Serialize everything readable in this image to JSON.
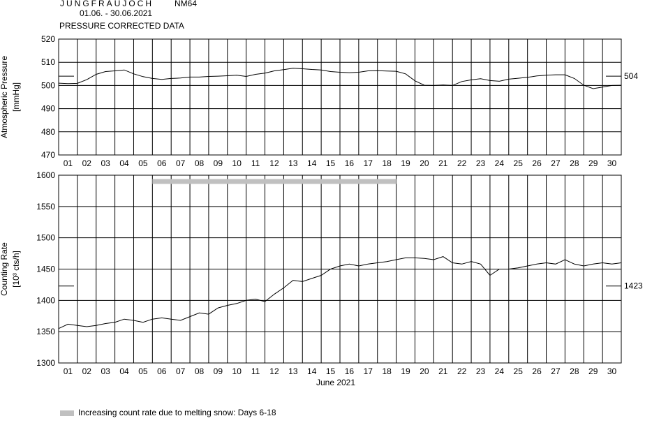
{
  "header": {
    "station": "JUNGFRAUJOCH",
    "monitor": "NM64",
    "date_range": "01.06. - 30.06.2021",
    "subtitle": "PRESSURE CORRECTED DATA"
  },
  "legend": {
    "label": "Increasing count rate due to melting snow: Days 6-18",
    "color": "#c0c0c0"
  },
  "chart_data": [
    {
      "type": "line",
      "ylabel": "Atmospheric Pressure",
      "yunit": "[mmHg]",
      "ylim": [
        470,
        520
      ],
      "yticks": [
        470,
        480,
        490,
        500,
        510,
        520
      ],
      "xlim": [
        1,
        31
      ],
      "x_tick_labels": [
        "01",
        "02",
        "03",
        "04",
        "05",
        "06",
        "07",
        "08",
        "09",
        "10",
        "11",
        "12",
        "13",
        "14",
        "15",
        "16",
        "17",
        "18",
        "19",
        "20",
        "21",
        "22",
        "23",
        "24",
        "25",
        "26",
        "27",
        "28",
        "29",
        "30"
      ],
      "grid": true,
      "reference_value": 504,
      "series": [
        {
          "x": [
            1.0,
            1.5,
            2.0,
            2.5,
            3.0,
            3.5,
            4.0,
            4.5,
            5.0,
            5.5,
            6.0,
            6.5,
            7.0,
            7.5,
            8.0,
            8.5,
            9.0,
            9.5,
            10.0,
            10.5,
            11.0,
            11.5,
            12.0,
            12.5,
            13.0,
            13.5,
            14.0,
            14.5,
            15.0,
            15.5,
            16.0,
            16.5,
            17.0,
            17.5,
            18.0,
            18.5,
            19.0,
            19.5,
            20.0,
            20.5,
            21.0,
            21.5,
            22.0,
            22.5,
            23.0,
            23.5,
            24.0,
            24.5,
            25.0,
            25.5,
            26.0,
            26.5,
            27.0,
            27.5,
            28.0,
            28.5,
            29.0,
            29.5,
            30.0,
            30.5,
            31.0
          ],
          "values": [
            501.0,
            500.8,
            500.9,
            502.5,
            504.8,
            506.0,
            506.3,
            506.7,
            505.0,
            503.8,
            503.0,
            502.6,
            503.0,
            503.2,
            503.6,
            503.6,
            503.9,
            504.0,
            504.2,
            504.4,
            503.9,
            504.8,
            505.3,
            506.3,
            506.8,
            507.4,
            507.2,
            506.9,
            506.7,
            506.0,
            505.7,
            505.5,
            505.7,
            506.3,
            506.4,
            506.2,
            506.1,
            505.0,
            502.0,
            500.1,
            500.0,
            500.2,
            500.0,
            501.7,
            502.4,
            502.9,
            502.1,
            501.8,
            502.7,
            503.1,
            503.5,
            504.1,
            504.4,
            504.6,
            504.6,
            503.0,
            500.1,
            498.6,
            499.3,
            500.0,
            500.1
          ]
        }
      ]
    },
    {
      "type": "line",
      "ylabel": "Counting Rate",
      "yunit": "[10³ cts/h]",
      "ylim": [
        1300,
        1600
      ],
      "yticks": [
        1300,
        1350,
        1400,
        1450,
        1500,
        1550,
        1600
      ],
      "xlim": [
        1,
        31
      ],
      "x_tick_labels": [
        "01",
        "02",
        "03",
        "04",
        "05",
        "06",
        "07",
        "08",
        "09",
        "10",
        "11",
        "12",
        "13",
        "14",
        "15",
        "16",
        "17",
        "18",
        "19",
        "20",
        "21",
        "22",
        "23",
        "24",
        "25",
        "26",
        "27",
        "28",
        "29",
        "30"
      ],
      "xlabel": "June 2021",
      "grid": true,
      "reference_value": 1423,
      "highlight_band": {
        "from_day": 6,
        "to_day": 18,
        "value": 1590
      },
      "series": [
        {
          "x": [
            1.0,
            1.5,
            2.0,
            2.5,
            3.0,
            3.5,
            4.0,
            4.5,
            5.0,
            5.5,
            6.0,
            6.5,
            7.0,
            7.5,
            8.0,
            8.5,
            9.0,
            9.5,
            10.0,
            10.5,
            11.0,
            11.5,
            12.0,
            12.5,
            13.0,
            13.5,
            14.0,
            14.5,
            15.0,
            15.5,
            16.0,
            16.5,
            17.0,
            17.5,
            18.0,
            18.5,
            19.0,
            19.5,
            20.0,
            20.5,
            21.0,
            21.5,
            22.0,
            22.5,
            23.0,
            23.5,
            24.0,
            24.5,
            25.0,
            25.5,
            26.0,
            26.5,
            27.0,
            27.5,
            28.0,
            28.5,
            29.0,
            29.5,
            30.0,
            30.5,
            31.0
          ],
          "values": [
            1355,
            1362,
            1360,
            1358,
            1360,
            1363,
            1365,
            1370,
            1368,
            1365,
            1370,
            1372,
            1370,
            1368,
            1374,
            1380,
            1378,
            1388,
            1392,
            1395,
            1400,
            1402,
            1398,
            1410,
            1420,
            1432,
            1430,
            1435,
            1440,
            1450,
            1455,
            1458,
            1455,
            1458,
            1460,
            1462,
            1465,
            1468,
            1468,
            1467,
            1465,
            1470,
            1460,
            1458,
            1462,
            1458,
            1440,
            1450,
            1450,
            1452,
            1455,
            1458,
            1460,
            1458,
            1465,
            1458,
            1455,
            1458,
            1460,
            1458,
            1460
          ]
        }
      ]
    }
  ]
}
